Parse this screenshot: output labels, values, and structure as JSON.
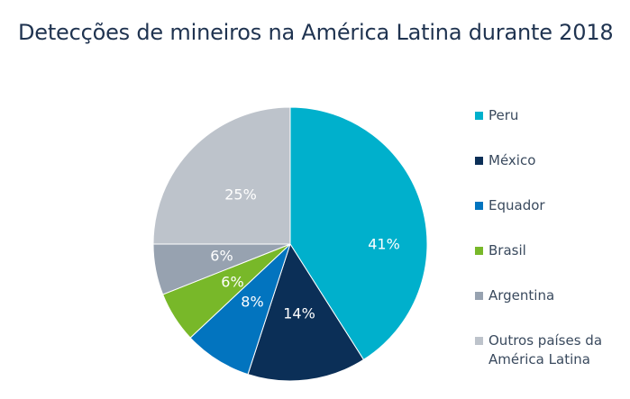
{
  "chart_data": {
    "type": "pie",
    "title": "Detecções de mineiros na América Latina durante 2018",
    "slices": [
      {
        "name": "Peru",
        "value": 41,
        "label": "41%",
        "color": "#00b0cc"
      },
      {
        "name": "México",
        "value": 14,
        "label": "14%",
        "color": "#0b2f57"
      },
      {
        "name": "Equador",
        "value": 8,
        "label": "8%",
        "color": "#0274bf"
      },
      {
        "name": "Brasil",
        "value": 6,
        "label": "6%",
        "color": "#78b829"
      },
      {
        "name": "Argentina",
        "value": 6,
        "label": "6%",
        "color": "#97a2b0"
      },
      {
        "name": "Outros países da América Latina",
        "value": 25,
        "label": "25%",
        "color": "#bdc3cb"
      }
    ],
    "legend_position": "right"
  },
  "legend": {
    "items": [
      {
        "label": "Peru",
        "color": "#00b0cc"
      },
      {
        "label": "México",
        "color": "#0b2f57"
      },
      {
        "label": "Equador",
        "color": "#0274bf"
      },
      {
        "label": "Brasil",
        "color": "#78b829"
      },
      {
        "label": "Argentina",
        "color": "#97a2b0"
      },
      {
        "label": "Outros países da América Latina",
        "color": "#bdc3cb"
      }
    ]
  }
}
